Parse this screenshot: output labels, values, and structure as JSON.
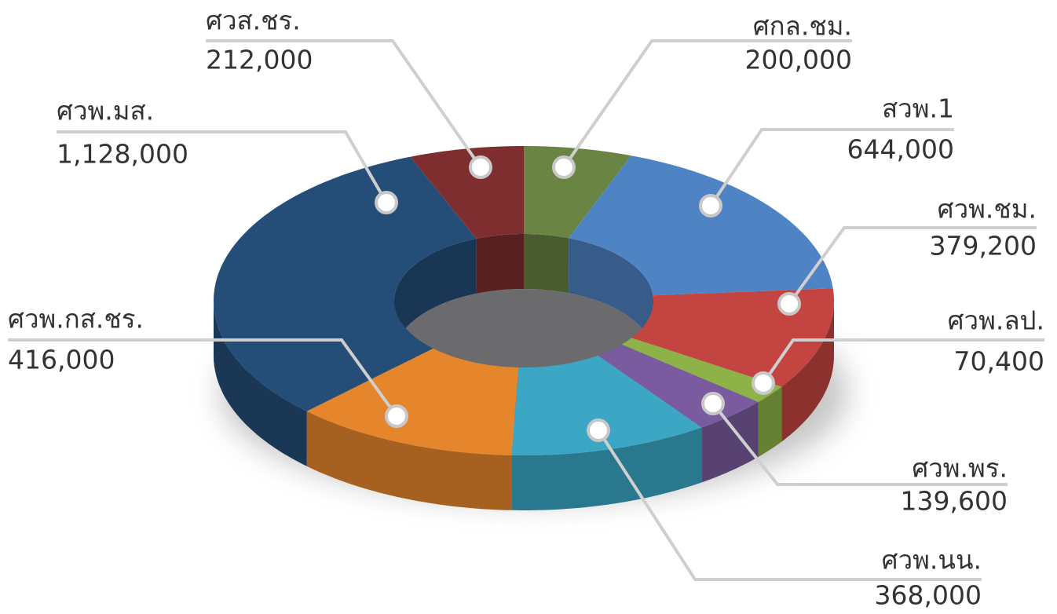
{
  "chart_data": {
    "type": "donut3d",
    "categories": [
      "ศกล.ชม.",
      "สวพ.1",
      "ศวพ.ชม.",
      "ศวพ.ลป.",
      "ศวพ.พร.",
      "ศวพ.นน.",
      "ศวพ.กส.ชร.",
      "ศวพ.มส.",
      "ศวส.ชร."
    ],
    "values": [
      200000,
      644000,
      379200,
      70400,
      139600,
      368000,
      416000,
      1128000,
      212000
    ],
    "value_labels": [
      "200,000",
      "644,000",
      "379,200",
      "70,400",
      "139,600",
      "368,000",
      "416,000",
      "1,128,000",
      "212,000"
    ],
    "colors": [
      "#6a8443",
      "#4f84c4",
      "#c44441",
      "#8db348",
      "#7a5b9f",
      "#3ba7c4",
      "#e6862c",
      "#244e78",
      "#7e2e2e"
    ]
  }
}
